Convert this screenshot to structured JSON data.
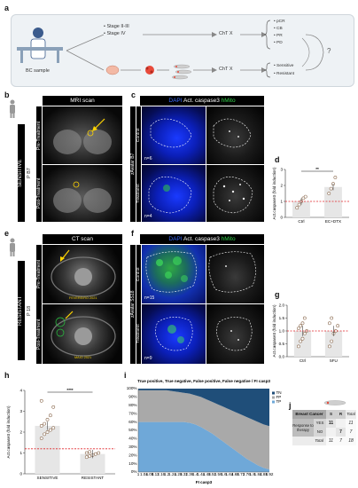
{
  "panel_labels": {
    "a": "a",
    "b": "b",
    "c": "c",
    "d": "d",
    "e": "e",
    "f": "f",
    "g": "g",
    "h": "h",
    "i": "i",
    "j": "j"
  },
  "schema": {
    "bc_sample": "BC sample",
    "stage_1": "• Stage II-III",
    "stage_2": "• Stage IV",
    "chtx_top": "ChT X",
    "chtx_bottom": "ChT X",
    "outcomes_top": [
      "• pCR",
      "• CB",
      "• PR",
      "• PD"
    ],
    "outcomes_bottom": [
      "• Sensitive",
      "• Resistant"
    ],
    "question": "?"
  },
  "b": {
    "header": "MRI scan",
    "side": "SENSITIVE",
    "patient": "P B7",
    "rows": [
      "Pre-Treatment",
      "Post-Treatment"
    ]
  },
  "c": {
    "header_dapi": "DAPI",
    "header_casp": " Act. caspase3 ",
    "header_hmito": "hMito",
    "side": "zAvatar B7",
    "rows": [
      "Control",
      "Treatment"
    ],
    "n": [
      "n=6",
      "n=4"
    ]
  },
  "d": {
    "ylabel": "Act.caspase3 (fold induction)",
    "sig": "**",
    "chart_data": {
      "type": "bar",
      "categories": [
        "Ctrl",
        "EC+DTX"
      ],
      "values": [
        1.0,
        1.9
      ],
      "points": [
        [
          0.6,
          0.8,
          1.0,
          1.2,
          1.3
        ],
        [
          1.5,
          1.8,
          2.1,
          2.5
        ]
      ],
      "ylim": [
        0,
        3
      ],
      "yticks": [
        "0",
        "1",
        "2",
        "3"
      ],
      "baseline": 1.0
    }
  },
  "e": {
    "header": "CT scan",
    "side": "RESISTANT",
    "patient": "P 18",
    "rows": [
      "Pre-Treatment",
      "Post-Treatment"
    ],
    "date_pre": "FEVEREIRO 2021",
    "date_post": "MAIO 2021"
  },
  "f": {
    "header_dapi": "DAPI",
    "header_casp": " Act. caspase3 ",
    "header_hmito": "hMito",
    "side": "zAvatar SS18",
    "rows": [
      "Control",
      "Treatment"
    ],
    "n": [
      "n=15",
      "n=9"
    ]
  },
  "g": {
    "ylabel": "Act.caspase3 (fold induction)",
    "chart_data": {
      "type": "bar",
      "categories": [
        "Ctrl",
        "5FU"
      ],
      "values": [
        1.0,
        1.0
      ],
      "points": [
        [
          0.4,
          0.6,
          0.7,
          0.9,
          1.0,
          1.1,
          1.2,
          1.3,
          1.5
        ],
        [
          0.4,
          0.6,
          0.9,
          1.0,
          1.2,
          1.3,
          1.5
        ]
      ],
      "ylim": [
        0,
        2
      ],
      "yticks": [
        "0.0",
        "0.5",
        "1.0",
        "1.5",
        "2.0"
      ],
      "baseline": 1.0
    }
  },
  "h": {
    "ylabel": "Act.caspase3 (fold induction)",
    "sig": "****",
    "chart_data": {
      "type": "bar",
      "categories": [
        "SENSITIVE",
        "RESISTANT"
      ],
      "values": [
        2.3,
        0.95
      ],
      "points": [
        [
          1.7,
          1.9,
          2.0,
          2.1,
          2.2,
          2.3,
          2.4,
          2.6,
          2.8,
          3.2,
          3.5
        ],
        [
          0.8,
          0.85,
          0.9,
          0.95,
          1.0,
          1.0,
          1.05
        ]
      ],
      "ylim": [
        0,
        4
      ],
      "yticks": [
        "0",
        "1",
        "2",
        "3",
        "4"
      ],
      "baseline": 1.2
    }
  },
  "i": {
    "title": "True positive, True negative, False positive, False negative / FI casp3",
    "xlabel": "FI casp3",
    "legend": [
      "TN",
      "FP",
      "TP"
    ],
    "chart_data": {
      "type": "area",
      "x": [
        1.0,
        1.04,
        1.08,
        1.12,
        1.16,
        1.2,
        1.24,
        1.28,
        1.32,
        1.36,
        1.4,
        1.44,
        1.48,
        1.52,
        1.56,
        1.6,
        1.64,
        1.68,
        1.72,
        1.76,
        1.8,
        1.84,
        1.88,
        1.92
      ],
      "xticklabels": [
        "1",
        "1.04",
        "1.08",
        "1.12",
        "1.16",
        "1.2",
        "1.24",
        "1.28",
        "1.32",
        "1.36",
        "1.4",
        "1.44",
        "1.48",
        "1.52",
        "1.56",
        "1.6",
        "1.64",
        "1.68",
        "1.72",
        "1.76",
        "1.8",
        "1.84",
        "1.88",
        "1.92"
      ],
      "yticks": [
        "0%",
        "10%",
        "20%",
        "30%",
        "40%",
        "50%",
        "60%",
        "70%",
        "80%",
        "90%",
        "100%"
      ],
      "series": [
        {
          "name": "TP",
          "color": "#6fa8d8",
          "values": [
            60,
            60,
            60,
            60,
            60,
            60,
            60,
            60,
            60,
            59,
            57,
            54,
            50,
            46,
            41,
            36,
            31,
            26,
            21,
            16,
            12,
            8,
            5,
            3
          ]
        },
        {
          "name": "FP",
          "color": "#a9a9a9",
          "values": [
            38,
            38,
            38,
            38,
            38,
            38,
            37,
            36,
            35,
            35,
            35,
            36,
            37,
            38,
            40,
            42,
            44,
            46,
            48,
            50,
            51,
            52,
            52,
            52
          ]
        },
        {
          "name": "TN",
          "color": "#1f4e79",
          "values": [
            2,
            2,
            2,
            2,
            2,
            2,
            3,
            4,
            5,
            6,
            8,
            10,
            13,
            16,
            19,
            22,
            25,
            28,
            31,
            34,
            37,
            40,
            43,
            45
          ]
        }
      ]
    }
  },
  "j": {
    "header": [
      "Breast Cancer",
      "S",
      "R",
      "Total"
    ],
    "row_label": "Response to therapy",
    "rows": [
      [
        "YES",
        "11",
        "",
        "11"
      ],
      [
        "NO",
        "",
        "7",
        "7"
      ]
    ],
    "total_row": [
      "Total",
      "11",
      "7",
      "18"
    ]
  }
}
